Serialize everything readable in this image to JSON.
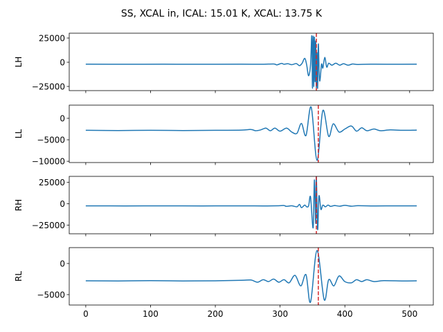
{
  "chart_data": [
    {
      "type": "line",
      "title": "SS, XCAL in, ICAL: 15.01 K, XCAL: 13.75 K",
      "ylabel": "LH",
      "xlim": [
        -25.55,
        536.55
      ],
      "ylim": [
        -29300,
        30000
      ],
      "xticks": [
        0,
        100,
        200,
        300,
        400,
        500
      ],
      "yticks": [
        25000,
        0,
        -25000
      ],
      "ytick_labels": [
        "25000",
        "0",
        "−25000"
      ],
      "vline_x": 356,
      "series_color": "#1f77b4",
      "vline_color": "#d62728",
      "points": [
        [
          0,
          -2000
        ],
        [
          60,
          -2100
        ],
        [
          120,
          -2000
        ],
        [
          180,
          -2100
        ],
        [
          240,
          -2000
        ],
        [
          270,
          -2100
        ],
        [
          290,
          -1800
        ],
        [
          295,
          -2700
        ],
        [
          302,
          -1200
        ],
        [
          306,
          -2100
        ],
        [
          312,
          -1500
        ],
        [
          318,
          -2500
        ],
        [
          325,
          -1400
        ],
        [
          330,
          -3500
        ],
        [
          334,
          -1000
        ],
        [
          338,
          4000
        ],
        [
          341,
          -2500
        ],
        [
          344,
          -14000
        ],
        [
          347,
          -3000
        ],
        [
          349,
          27000
        ],
        [
          350,
          -27000
        ],
        [
          351,
          27000
        ],
        [
          352,
          -25000
        ],
        [
          353,
          26000
        ],
        [
          354,
          -20000
        ],
        [
          355,
          22000
        ],
        [
          356,
          -26000
        ],
        [
          357,
          10000
        ],
        [
          358,
          -27000
        ],
        [
          359,
          19000
        ],
        [
          361,
          -19000
        ],
        [
          364,
          -2000
        ],
        [
          366,
          -6000
        ],
        [
          369,
          5000
        ],
        [
          372,
          -5000
        ],
        [
          375,
          -1000
        ],
        [
          380,
          -3000
        ],
        [
          386,
          -1000
        ],
        [
          392,
          -3000
        ],
        [
          398,
          -1500
        ],
        [
          405,
          -3000
        ],
        [
          412,
          -1800
        ],
        [
          420,
          -2300
        ],
        [
          440,
          -2000
        ],
        [
          480,
          -2100
        ],
        [
          511,
          -2000
        ]
      ]
    },
    {
      "type": "line",
      "ylabel": "LL",
      "xlim": [
        -25.55,
        536.55
      ],
      "ylim": [
        -10300,
        3060
      ],
      "xticks": [
        0,
        100,
        200,
        300,
        400,
        500
      ],
      "yticks": [
        0,
        -5000,
        -10000
      ],
      "ytick_labels": [
        "0",
        "−5000",
        "−10000"
      ],
      "vline_x": 359,
      "series_color": "#1f77b4",
      "vline_color": "#d62728",
      "points": [
        [
          0,
          -2800
        ],
        [
          50,
          -2850
        ],
        [
          100,
          -2800
        ],
        [
          150,
          -2850
        ],
        [
          200,
          -2800
        ],
        [
          240,
          -2750
        ],
        [
          255,
          -2600
        ],
        [
          262,
          -2900
        ],
        [
          270,
          -2700
        ],
        [
          278,
          -2300
        ],
        [
          285,
          -2900
        ],
        [
          292,
          -2300
        ],
        [
          300,
          -3000
        ],
        [
          310,
          -2300
        ],
        [
          318,
          -3200
        ],
        [
          326,
          -3500
        ],
        [
          333,
          -1200
        ],
        [
          340,
          -4000
        ],
        [
          348,
          2600
        ],
        [
          357,
          -9800
        ],
        [
          366,
          1800
        ],
        [
          375,
          -4200
        ],
        [
          382,
          -1300
        ],
        [
          391,
          -3200
        ],
        [
          400,
          -2500
        ],
        [
          410,
          -1800
        ],
        [
          418,
          -3000
        ],
        [
          426,
          -2200
        ],
        [
          434,
          -2900
        ],
        [
          445,
          -2500
        ],
        [
          455,
          -2900
        ],
        [
          470,
          -2700
        ],
        [
          490,
          -2800
        ],
        [
          511,
          -2750
        ]
      ]
    },
    {
      "type": "line",
      "ylabel": "RH",
      "xlim": [
        -25.55,
        536.55
      ],
      "ylim": [
        -35000,
        32000
      ],
      "xticks": [
        0,
        100,
        200,
        300,
        400,
        500
      ],
      "yticks": [
        25000,
        0,
        -25000
      ],
      "ytick_labels": [
        "25000",
        "0",
        "−25000"
      ],
      "vline_x": 356,
      "series_color": "#1f77b4",
      "vline_color": "#d62728",
      "points": [
        [
          0,
          -2400
        ],
        [
          60,
          -2500
        ],
        [
          120,
          -2400
        ],
        [
          180,
          -2500
        ],
        [
          240,
          -2400
        ],
        [
          280,
          -2500
        ],
        [
          300,
          -2200
        ],
        [
          306,
          -2000
        ],
        [
          310,
          -3000
        ],
        [
          318,
          -2300
        ],
        [
          326,
          -3500
        ],
        [
          330,
          -700
        ],
        [
          333,
          -4500
        ],
        [
          338,
          -1500
        ],
        [
          341,
          -3500
        ],
        [
          344,
          -2500
        ],
        [
          347,
          8000
        ],
        [
          351,
          -28000
        ],
        [
          353,
          28000
        ],
        [
          355,
          -23000
        ],
        [
          356,
          32000
        ],
        [
          358,
          -30000
        ],
        [
          360,
          9000
        ],
        [
          363,
          -6500
        ],
        [
          366,
          -1500
        ],
        [
          370,
          -3500
        ],
        [
          374,
          -1500
        ],
        [
          378,
          -3000
        ],
        [
          384,
          -2000
        ],
        [
          392,
          -2800
        ],
        [
          400,
          -1800
        ],
        [
          410,
          -2800
        ],
        [
          420,
          -2200
        ],
        [
          440,
          -2500
        ],
        [
          480,
          -2400
        ],
        [
          511,
          -2400
        ]
      ]
    },
    {
      "type": "line",
      "ylabel": "RL",
      "xlim": [
        -25.55,
        536.55
      ],
      "ylim": [
        -6670,
        2550
      ],
      "xticks": [
        0,
        100,
        200,
        300,
        400,
        500
      ],
      "xtick_labels": [
        "0",
        "100",
        "200",
        "300",
        "400",
        "500"
      ],
      "yticks": [
        0,
        -5000
      ],
      "ytick_labels": [
        "0",
        "−5000"
      ],
      "vline_x": 359,
      "series_color": "#1f77b4",
      "vline_color": "#d62728",
      "points": [
        [
          0,
          -2780
        ],
        [
          50,
          -2800
        ],
        [
          100,
          -2760
        ],
        [
          150,
          -2800
        ],
        [
          200,
          -2780
        ],
        [
          240,
          -2700
        ],
        [
          255,
          -2650
        ],
        [
          265,
          -3000
        ],
        [
          274,
          -2600
        ],
        [
          282,
          -2900
        ],
        [
          290,
          -2500
        ],
        [
          298,
          -3000
        ],
        [
          306,
          -2600
        ],
        [
          314,
          -3100
        ],
        [
          323,
          -1900
        ],
        [
          332,
          -3600
        ],
        [
          340,
          -1800
        ],
        [
          347,
          -6200
        ],
        [
          357,
          2100
        ],
        [
          368,
          -5800
        ],
        [
          375,
          -2600
        ],
        [
          383,
          -3600
        ],
        [
          391,
          -2000
        ],
        [
          400,
          -2900
        ],
        [
          410,
          -3100
        ],
        [
          418,
          -2600
        ],
        [
          426,
          -2900
        ],
        [
          434,
          -2600
        ],
        [
          445,
          -2900
        ],
        [
          460,
          -2750
        ],
        [
          490,
          -2800
        ],
        [
          511,
          -2780
        ]
      ]
    }
  ]
}
